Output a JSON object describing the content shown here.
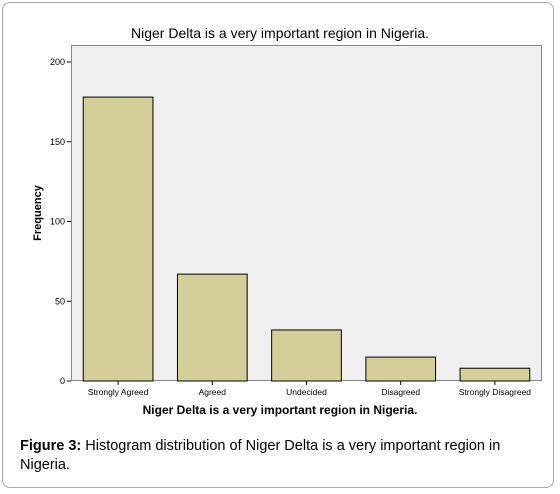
{
  "figure": {
    "caption_label": "Figure 3:",
    "caption_text": " Histogram distribution of Niger Delta is a very important region in Nigeria."
  },
  "chart_data": {
    "type": "bar",
    "title": "Niger Delta is a very important region in Nigeria.",
    "xlabel": "Niger Delta is a very important region in Nigeria.",
    "ylabel": "Frequency",
    "categories": [
      "Strongly Agreed",
      "Agreed",
      "Undecided",
      "Disagreed",
      "Strongly Disagreed"
    ],
    "values": [
      178,
      67,
      32,
      15,
      8
    ],
    "ylim": [
      0,
      200
    ],
    "yticks": [
      0,
      50,
      100,
      150,
      200
    ],
    "grid": false,
    "bar_color": "#d4ce99",
    "bar_edge": "#000000",
    "plot_background": "#f0f0f0"
  }
}
